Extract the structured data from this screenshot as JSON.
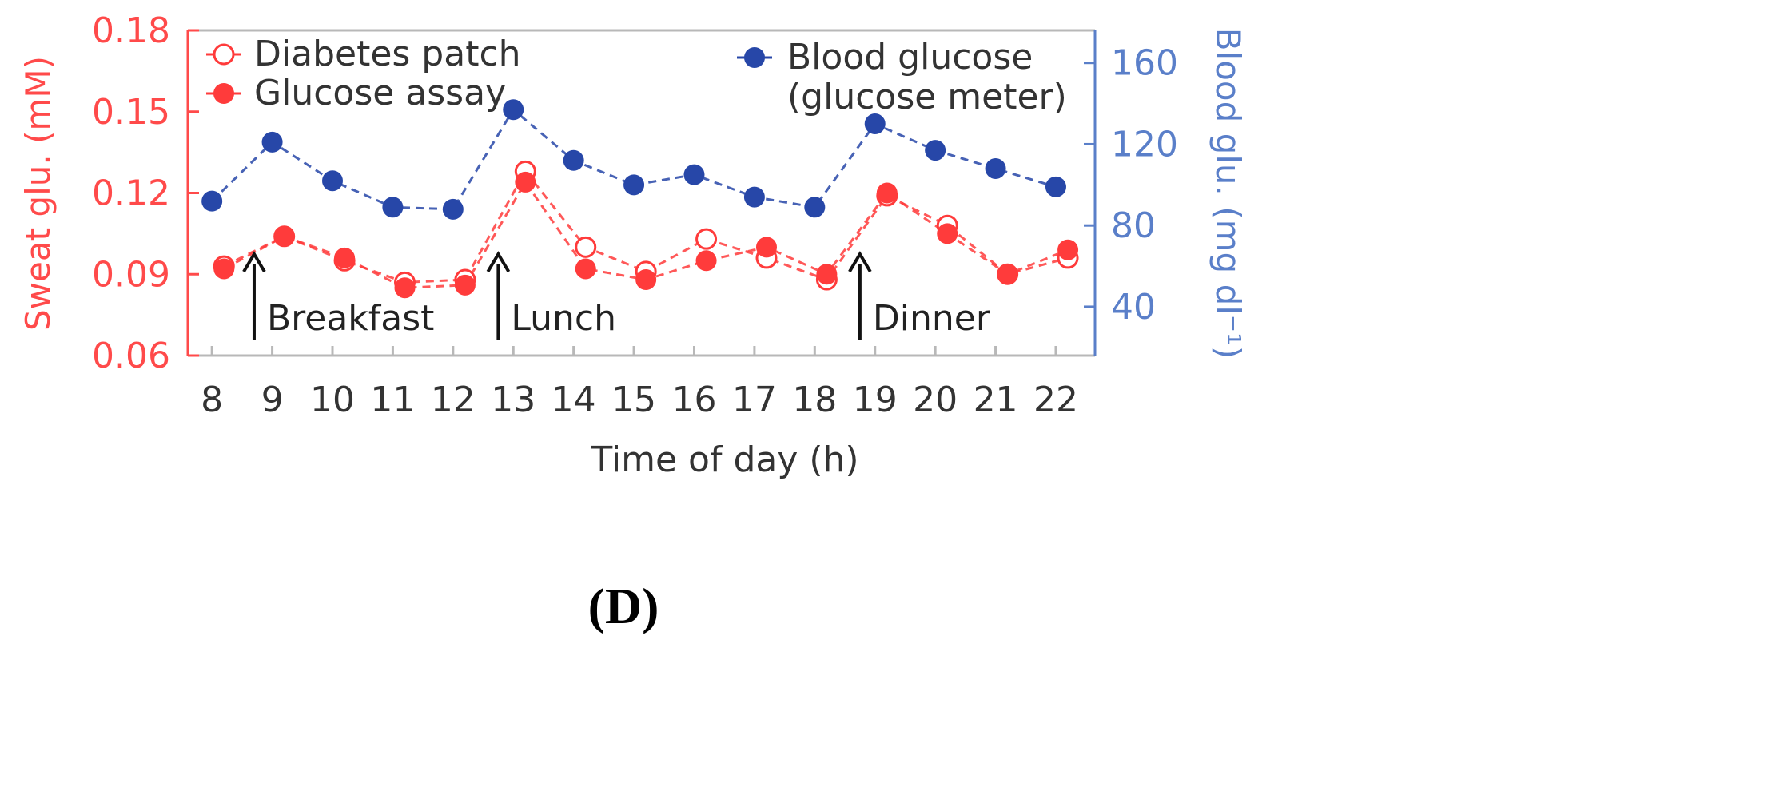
{
  "chart_data": {
    "type": "line",
    "xlabel": "Time of day (h)",
    "ylabel_left": "Sweat glu. (mM)",
    "ylabel_right": "Blood glu. (mg dl⁻¹)",
    "x_ticks": [
      8,
      9,
      10,
      11,
      12,
      13,
      14,
      15,
      16,
      17,
      18,
      19,
      20,
      21,
      22
    ],
    "y_left_ticks": [
      "0.06",
      "0.09",
      "0.12",
      "0.15",
      "0.18"
    ],
    "y_right_ticks": [
      "40",
      "80",
      "120",
      "160"
    ],
    "ylim_left": [
      0.06,
      0.18
    ],
    "ylim_right": [
      16,
      176
    ],
    "xlim": [
      7.6,
      22.65
    ],
    "grid": false,
    "legend_placement": "top",
    "series": [
      {
        "name": "Diabetes patch",
        "axis": "left",
        "marker": "open-circle",
        "color": "#ff3b3b",
        "x": [
          8.2,
          9.2,
          10.2,
          11.2,
          12.2,
          13.2,
          14.2,
          15.2,
          16.2,
          17.2,
          18.2,
          19.2,
          20.2,
          21.2,
          22.2
        ],
        "values": [
          0.093,
          0.104,
          0.095,
          0.087,
          0.088,
          0.128,
          0.1,
          0.091,
          0.103,
          0.096,
          0.088,
          0.119,
          0.108,
          0.09,
          0.096
        ]
      },
      {
        "name": "Glucose assay",
        "axis": "left",
        "marker": "filled-circle",
        "color": "#ff3b3b",
        "x": [
          8.2,
          9.2,
          10.2,
          11.2,
          12.2,
          13.2,
          14.2,
          15.2,
          16.2,
          17.2,
          18.2,
          19.2,
          20.2,
          21.2,
          22.2
        ],
        "values": [
          0.092,
          0.104,
          0.096,
          0.085,
          0.086,
          0.124,
          0.092,
          0.088,
          0.095,
          0.1,
          0.09,
          0.12,
          0.105,
          0.09,
          0.099
        ]
      },
      {
        "name": "Blood glucose",
        "name_line2": "(glucose meter)",
        "axis": "right",
        "marker": "filled-circle",
        "color": "#2747a8",
        "x": [
          8,
          9,
          10,
          11,
          12,
          13,
          14,
          15,
          16,
          17,
          18,
          19,
          20,
          21,
          22
        ],
        "values": [
          92,
          121,
          102,
          89,
          88,
          137,
          112,
          100,
          105,
          94,
          89,
          130,
          117,
          108,
          99
        ]
      }
    ],
    "annotations": [
      {
        "text": "Breakfast",
        "x": 8.7
      },
      {
        "text": "Lunch",
        "x": 12.75
      },
      {
        "text": "Dinner",
        "x": 18.75
      }
    ],
    "colors": {
      "left_axis": "#ff4a4a",
      "right_axis": "#5a7fc9",
      "frame": "#b8b8b8"
    }
  },
  "panel_label": "(D)"
}
